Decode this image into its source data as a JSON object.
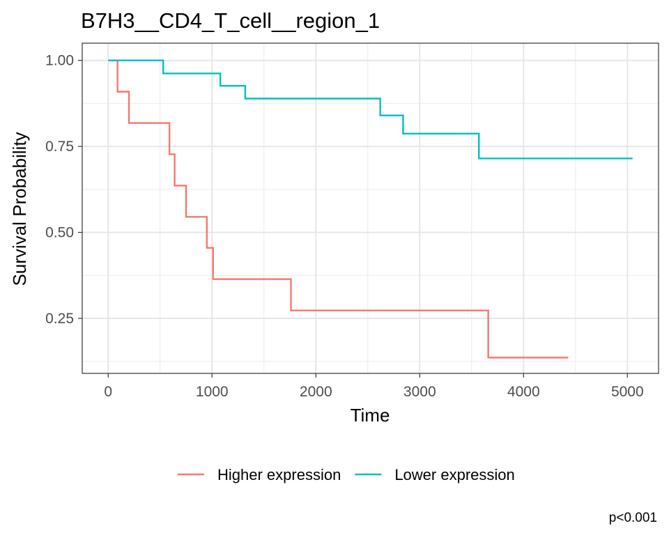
{
  "chart_data": {
    "type": "line",
    "step": true,
    "title": "B7H3__CD4_T_cell__region_1",
    "xlabel": "Time",
    "ylabel": "Survival Probability",
    "xlim": [
      -250,
      5300
    ],
    "ylim": [
      0.09,
      1.05
    ],
    "x_ticks": [
      0,
      1000,
      2000,
      3000,
      4000,
      5000
    ],
    "x_tick_labels": [
      "0",
      "1000",
      "2000",
      "3000",
      "4000",
      "5000"
    ],
    "y_ticks": [
      0.25,
      0.5,
      0.75,
      1.0
    ],
    "y_tick_labels": [
      "0.25",
      "0.50",
      "0.75",
      "1.00"
    ],
    "grid": true,
    "legend_position": "bottom",
    "caption": "p<0.001",
    "series": [
      {
        "name": "Higher expression",
        "color": "#F8766D",
        "x": [
          0,
          90,
          200,
          590,
          640,
          750,
          950,
          1010,
          1760,
          3660,
          4430
        ],
        "y": [
          1.0,
          0.909,
          0.818,
          0.727,
          0.636,
          0.545,
          0.455,
          0.364,
          0.273,
          0.136,
          0.136
        ]
      },
      {
        "name": "Lower expression",
        "color": "#00BFC4",
        "x": [
          0,
          530,
          1080,
          1320,
          2620,
          2840,
          3570,
          5050
        ],
        "y": [
          1.0,
          0.962,
          0.926,
          0.889,
          0.84,
          0.787,
          0.715,
          0.715
        ]
      }
    ]
  }
}
